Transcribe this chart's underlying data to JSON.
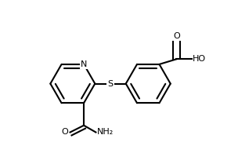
{
  "bg_color": "#ffffff",
  "line_color": "#000000",
  "figsize": [
    3.04,
    2.0
  ],
  "dpi": 100,
  "lw": 1.5,
  "atoms": {
    "N": {
      "label": "N",
      "fs": 8
    },
    "S": {
      "label": "S",
      "fs": 8
    },
    "O1": {
      "label": "O",
      "fs": 8
    },
    "O2": {
      "label": "O",
      "fs": 8
    },
    "O3": {
      "label": "O",
      "fs": 8
    },
    "NH2": {
      "label": "NH₂",
      "fs": 8
    },
    "HO": {
      "label": "HO",
      "fs": 8
    }
  }
}
